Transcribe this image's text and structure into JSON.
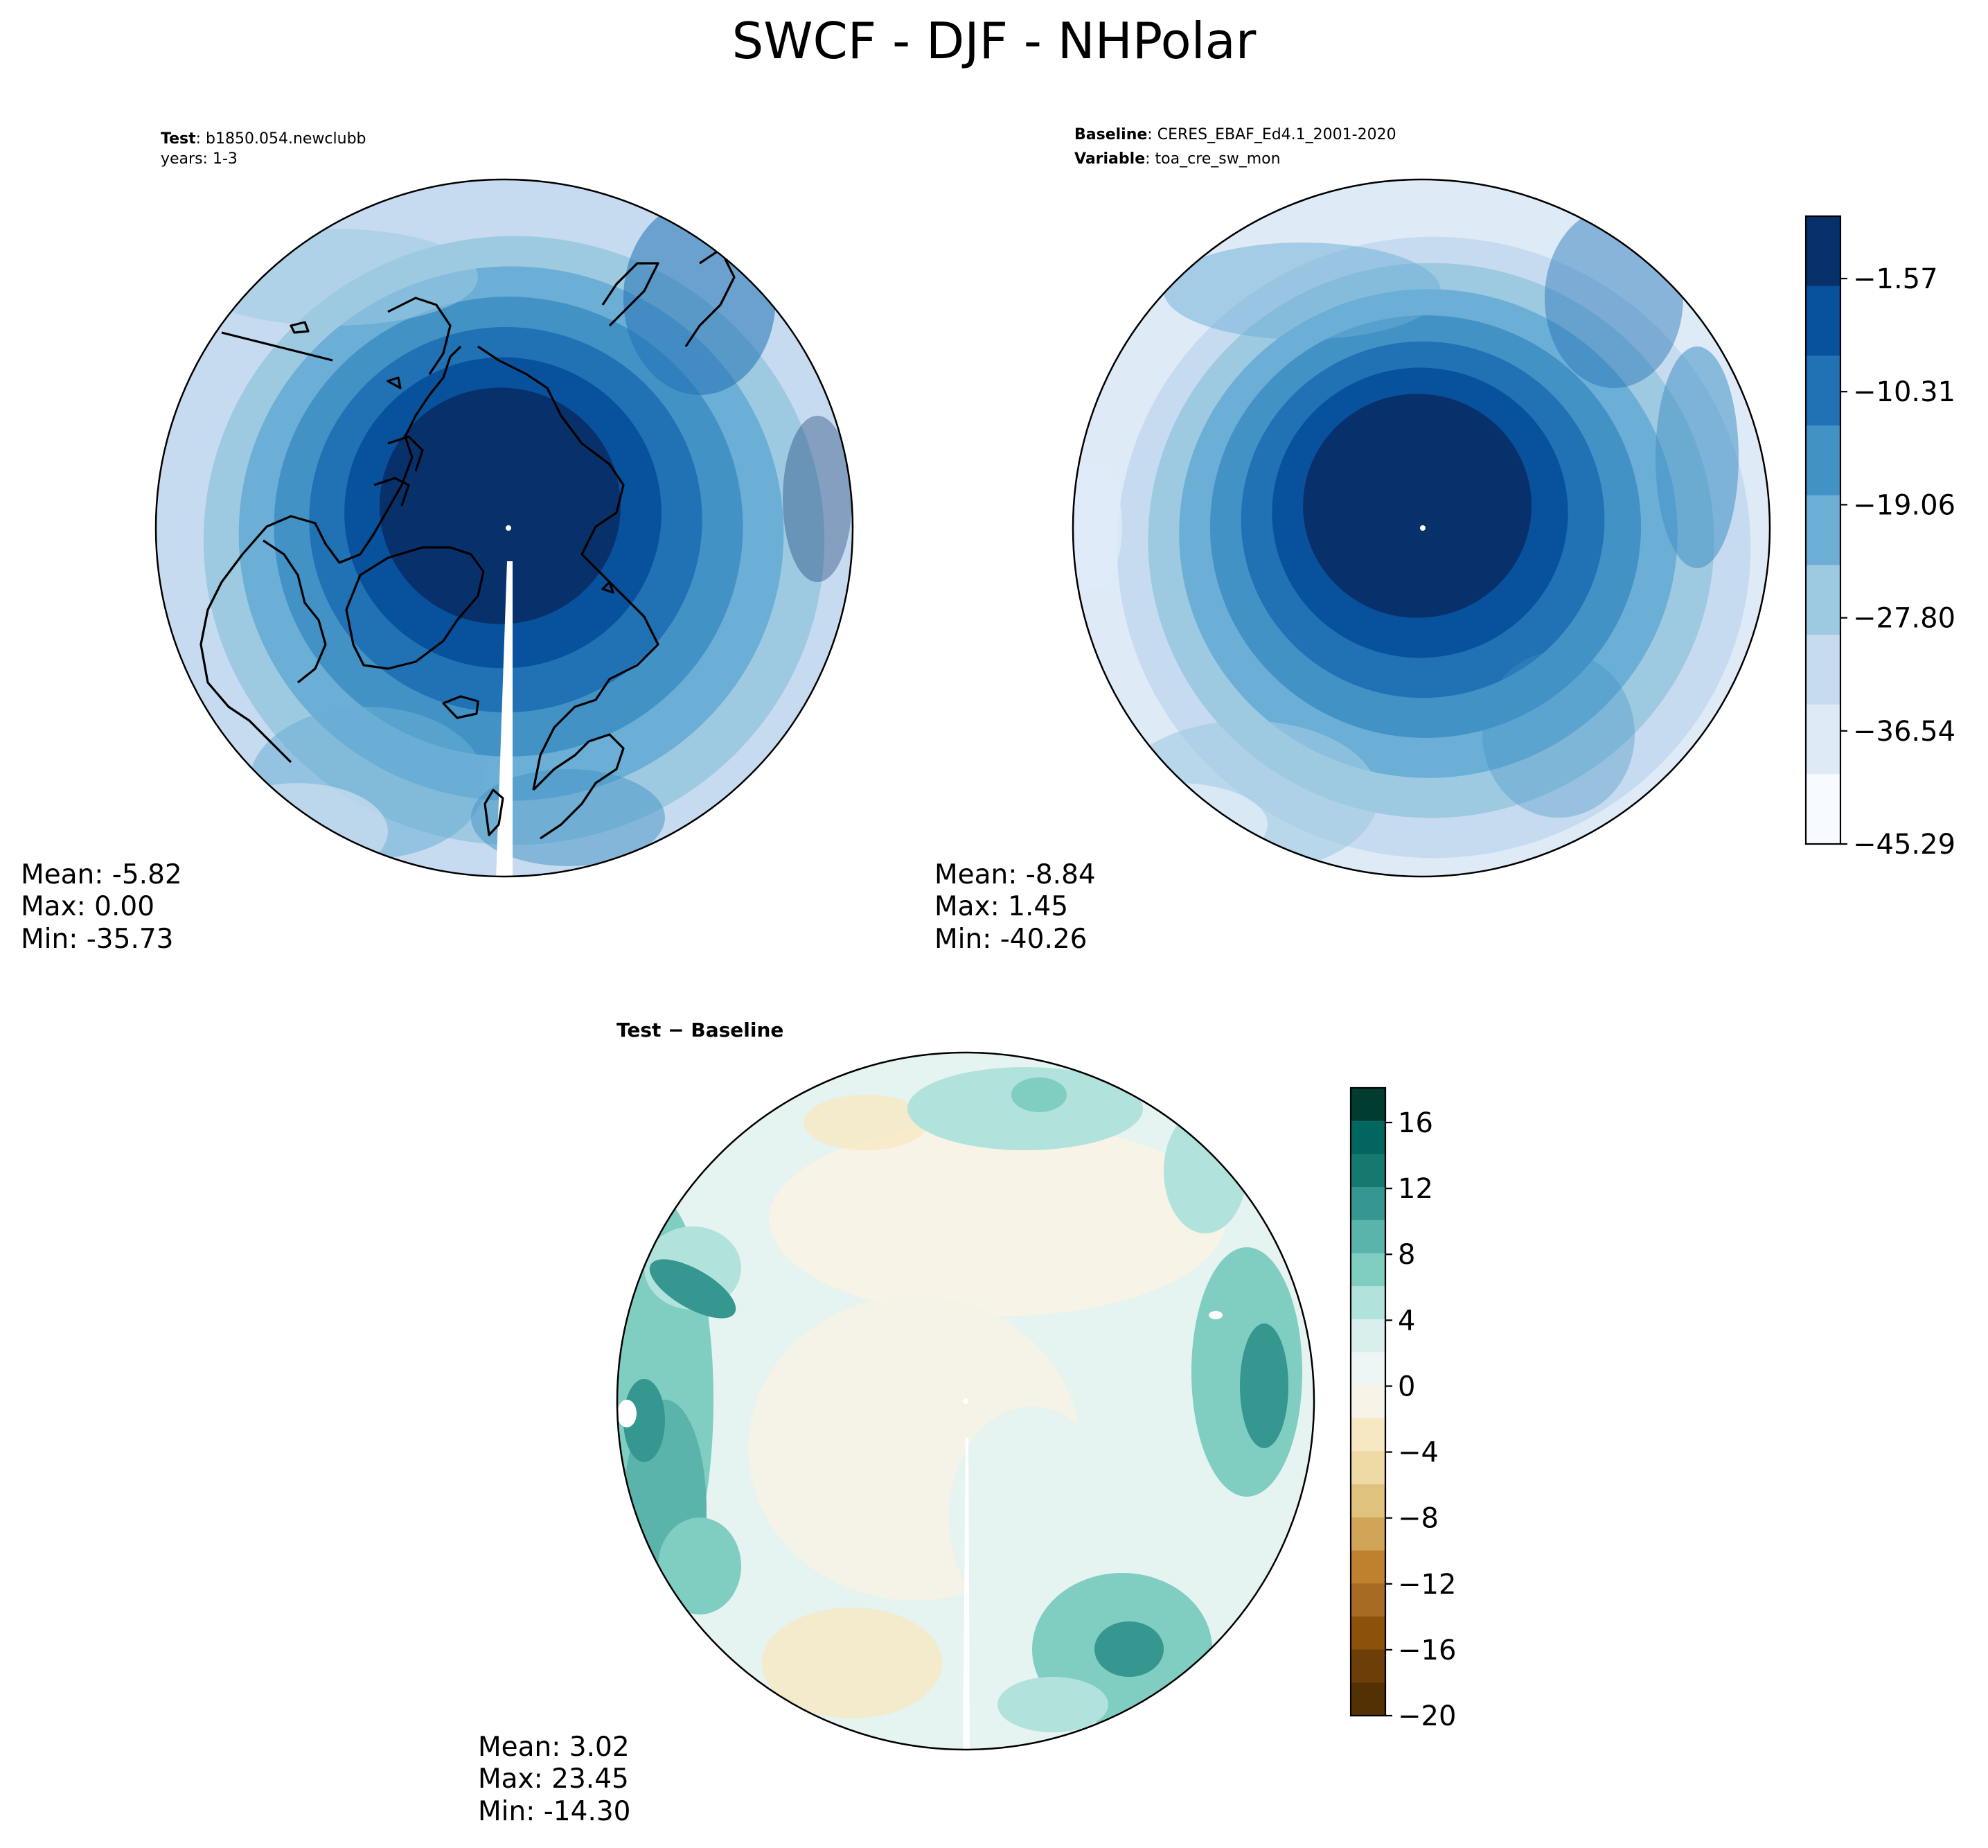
{
  "figure": {
    "title": "SWCF - DJF - NHPolar"
  },
  "panels": {
    "test": {
      "label_bold": "Test",
      "label_sep": ": ",
      "case_name": "b1850.054.newclubb",
      "years_line": "years: 1-3",
      "stats": {
        "mean": "Mean: -5.82",
        "max": "Max:  0.00",
        "min": "Min: -35.73"
      }
    },
    "baseline": {
      "baseline_bold": "Baseline",
      "baseline_sep": ": ",
      "dataset": "CERES_EBAF_Ed4.1_2001-2020",
      "variable_bold": "Variable",
      "variable_sep": ": ",
      "variable": "toa_cre_sw_mon",
      "stats": {
        "mean": "Mean: -8.84",
        "max": "Max:  1.45",
        "min": "Min: -40.26"
      }
    },
    "diff": {
      "title": "Test − Baseline",
      "stats": {
        "mean": "Mean:  3.02",
        "max": "Max: 23.45",
        "min": "Min: -14.30"
      }
    }
  },
  "colorbars": {
    "main": {
      "ticks": [
        "−1.57",
        "−10.31",
        "−19.06",
        "−27.80",
        "−36.54",
        "−45.29"
      ],
      "levels_top_to_bottom": [
        "#08306b",
        "#08519c",
        "#2171b5",
        "#4292c6",
        "#6baed6",
        "#9ecae1",
        "#c6dbef",
        "#deebf7",
        "#f7fbff"
      ]
    },
    "diff": {
      "ticks": [
        "16",
        "12",
        "8",
        "4",
        "0",
        "−4",
        "−8",
        "−12",
        "−16",
        "−20"
      ],
      "levels_top_to_bottom": [
        "#003c30",
        "#01665e",
        "#147a6f",
        "#35978f",
        "#5ab4ac",
        "#80cdc1",
        "#b2e2dc",
        "#d8efec",
        "#edf6f4",
        "#f7f3e6",
        "#f6e8c3",
        "#efd9a5",
        "#dfc27d",
        "#d1a457",
        "#bf812d",
        "#a86b23",
        "#8c510a",
        "#6d3e08",
        "#543005"
      ]
    }
  },
  "colors": {
    "test_ramp": [
      "#08306b",
      "#08306b",
      "#08519c",
      "#2171b5",
      "#4292c6",
      "#6baed6",
      "#9ecae1",
      "#c6dbef"
    ],
    "baseline_ramp": [
      "#08306b",
      "#08306b",
      "#08519c",
      "#2171b5",
      "#4292c6",
      "#6baed6",
      "#9ecae1",
      "#c6dbef",
      "#deebf7"
    ],
    "diff_field": [
      "#e5f3f1",
      "#d0ece8",
      "#b2e2dc",
      "#80cdc1",
      "#5ab4ac",
      "#35978f"
    ]
  }
}
